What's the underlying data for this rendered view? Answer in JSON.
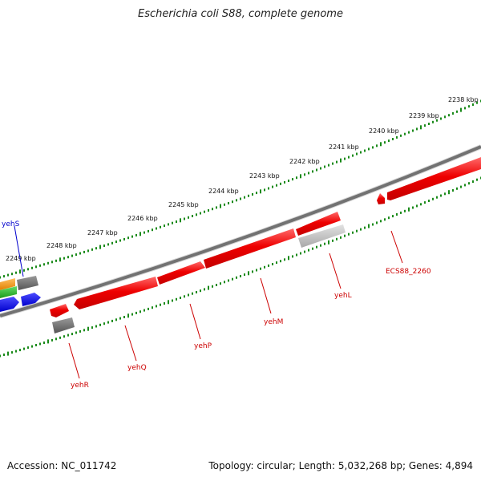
{
  "title": "Escherichia coli S88, complete genome",
  "accession": "Accession: NC_011742",
  "genome_summary": "Topology: circular; Length: 5,032,268 bp; Genes: 4,894",
  "scale_labels": [
    "2238 kbp",
    "2239 kbp",
    "2240 kbp",
    "2241 kbp",
    "2242 kbp",
    "2243 kbp",
    "2244 kbp",
    "2245 kbp",
    "2246 kbp",
    "2247 kbp",
    "2248 kbp",
    "2249 kbp"
  ],
  "gene_labels": [
    {
      "name": "yehS",
      "color": "#0000cc"
    },
    {
      "name": "yehR",
      "color": "#cc0000"
    },
    {
      "name": "yehQ",
      "color": "#cc0000"
    },
    {
      "name": "yehP",
      "color": "#cc0000"
    },
    {
      "name": "yehM",
      "color": "#cc0000"
    },
    {
      "name": "yehL",
      "color": "#cc0000"
    },
    {
      "name": "ECS88_2260",
      "color": "#cc0000"
    }
  ],
  "colors": {
    "backbone": "#7a7a7a",
    "scale_ticks": "#1a8a1a",
    "gene_red": "#ee0000",
    "gene_grey": "#707070",
    "gene_lightgrey": "#b8b8b8",
    "gene_blue": "#0000ee",
    "gene_green": "#22bb22",
    "gene_orange": "#ff9900"
  }
}
